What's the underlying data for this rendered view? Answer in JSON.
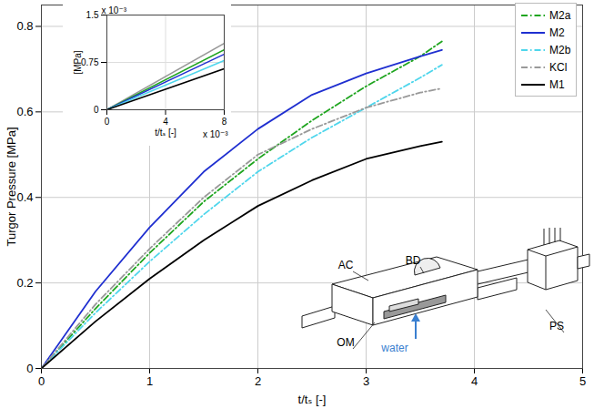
{
  "chart_data": [
    {
      "type": "line",
      "x_label": "t/tₛ [-]",
      "y_label": "Turgor Pressure [MPa]",
      "x": [
        0,
        0.5,
        1,
        1.5,
        2,
        2.5,
        3,
        3.5,
        3.7
      ],
      "series": [
        {
          "name": "M2a",
          "color": "#1fa51f",
          "line_style": "dashdot",
          "values": [
            0,
            0.14,
            0.27,
            0.39,
            0.49,
            0.58,
            0.66,
            0.73,
            0.765
          ]
        },
        {
          "name": "M2",
          "color": "#1f2fd0",
          "line_style": "solid",
          "values": [
            0,
            0.18,
            0.33,
            0.46,
            0.56,
            0.64,
            0.69,
            0.73,
            0.745
          ]
        },
        {
          "name": "M2b",
          "color": "#4fd6ec",
          "line_style": "dashdot",
          "values": [
            0,
            0.13,
            0.25,
            0.36,
            0.46,
            0.54,
            0.61,
            0.68,
            0.71
          ]
        },
        {
          "name": "KCl",
          "color": "#999999",
          "line_style": "dashdot",
          "values": [
            0,
            0.15,
            0.28,
            0.4,
            0.5,
            0.56,
            0.61,
            0.645,
            0.655
          ]
        },
        {
          "name": "M1",
          "color": "#000000",
          "line_style": "solid",
          "values": [
            0,
            0.11,
            0.21,
            0.3,
            0.38,
            0.44,
            0.49,
            0.52,
            0.53
          ]
        }
      ],
      "xlim": [
        0,
        5
      ],
      "xticks": [
        0,
        1,
        2,
        3,
        4,
        5
      ],
      "ylim": [
        0,
        0.85
      ],
      "yticks": [
        0,
        0.2,
        0.4,
        0.6,
        0.8
      ],
      "grid": true,
      "legend": "top-right",
      "annotations": [
        "AC",
        "BD",
        "OM",
        "water",
        "PS"
      ]
    },
    {
      "type": "line",
      "x_label": "t/tₛ [-]",
      "y_label": "[MPa]",
      "annotations": [
        "x 10⁻³",
        "x 10⁻³"
      ],
      "x": [
        0,
        8
      ],
      "series": [
        {
          "name": "KCl",
          "color": "#999999",
          "line_style": "solid",
          "values": [
            0,
            1.05
          ]
        },
        {
          "name": "M2a",
          "color": "#1fa51f",
          "line_style": "solid",
          "values": [
            0,
            0.95
          ]
        },
        {
          "name": "M2",
          "color": "#1f2fd0",
          "line_style": "solid",
          "values": [
            0,
            0.88
          ]
        },
        {
          "name": "M2b",
          "color": "#4fd6ec",
          "line_style": "solid",
          "values": [
            0,
            0.78
          ]
        },
        {
          "name": "M1",
          "color": "#000000",
          "line_style": "solid",
          "values": [
            0,
            0.65
          ]
        }
      ],
      "xlim": [
        0,
        8
      ],
      "xticks": [
        0,
        4,
        8
      ],
      "ylim": [
        0,
        1.5
      ],
      "yticks": [
        0,
        0.75,
        1.5
      ],
      "grid": true
    }
  ]
}
